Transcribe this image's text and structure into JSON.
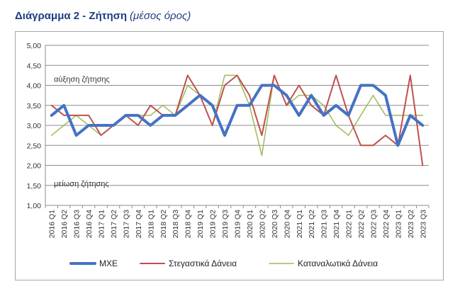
{
  "header": {
    "title": "Διάγραμμα 2 - Ζήτηση",
    "subtitle": "(μέσος όρος)"
  },
  "chart_data": {
    "type": "line",
    "title": "Διάγραμμα 2 - Ζήτηση",
    "subtitle": "(μέσος όρος)",
    "categories": [
      "2016 Q1",
      "2016 Q2",
      "2016 Q3",
      "2016 Q4",
      "2017 Q1",
      "2017 Q2",
      "2017 Q3",
      "2017 Q4",
      "2018 Q1",
      "2018 Q2",
      "2018 Q3",
      "2018 Q4",
      "2019 Q1",
      "2019 Q2",
      "2019 Q3",
      "2019 Q4",
      "2020 Q1",
      "2020 Q2",
      "2020 Q3",
      "2020 Q4",
      "2021 Q1",
      "2021 Q2",
      "2021 Q3",
      "2021 Q4",
      "2022 Q1",
      "2022 Q2",
      "2022 Q3",
      "2022 Q4",
      "2023 Q1",
      "2023 Q2",
      "2023 Q3"
    ],
    "yticks": [
      "1,00",
      "1,50",
      "2,00",
      "2,50",
      "3,00",
      "3,50",
      "4,00",
      "4,50",
      "5,00"
    ],
    "ylim": [
      1,
      5
    ],
    "grid": true,
    "legend_position": "bottom",
    "annotations": {
      "upper": "αύξηση ζήτησης",
      "lower": "μείωση ζήτησης"
    },
    "series": [
      {
        "name": "ΜΧΕ",
        "color": "#4472c4",
        "values": [
          3.25,
          3.5,
          2.75,
          3.0,
          3.0,
          3.0,
          3.25,
          3.25,
          3.0,
          3.25,
          3.25,
          3.5,
          3.75,
          3.5,
          2.75,
          3.5,
          3.5,
          4.0,
          4.0,
          3.75,
          3.25,
          3.75,
          3.25,
          3.5,
          3.25,
          4.0,
          4.0,
          3.75,
          2.5,
          3.25,
          3.0
        ]
      },
      {
        "name": "Στεγαστικά Δάνεια",
        "color": "#c0504d",
        "values": [
          3.5,
          3.25,
          3.25,
          3.25,
          2.75,
          3.0,
          3.25,
          3.0,
          3.5,
          3.25,
          3.25,
          4.25,
          3.75,
          3.0,
          4.0,
          4.25,
          3.75,
          2.75,
          4.25,
          3.5,
          4.0,
          3.5,
          3.25,
          4.25,
          3.25,
          2.5,
          2.5,
          2.75,
          2.5,
          4.25,
          2.0
        ]
      },
      {
        "name": "Καταναλωτικά Δάνεια",
        "color": "#9bbb59",
        "values": [
          2.75,
          3.0,
          3.25,
          3.0,
          2.75,
          3.0,
          3.25,
          3.25,
          3.25,
          3.5,
          3.25,
          4.0,
          3.75,
          3.0,
          4.25,
          4.25,
          3.5,
          2.25,
          4.25,
          3.5,
          3.75,
          3.75,
          3.5,
          3.0,
          2.75,
          3.25,
          3.75,
          3.25,
          3.25,
          3.25,
          3.25
        ]
      }
    ]
  }
}
